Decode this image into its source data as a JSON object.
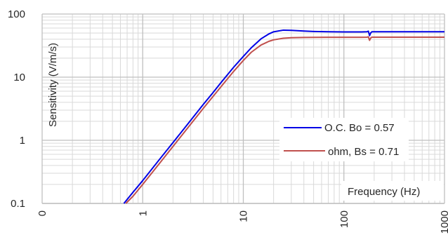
{
  "chart_data": {
    "type": "line",
    "title": "",
    "xlabel": "Frequency (Hz)",
    "ylabel": "Sensitivity (V/m/s)",
    "x_scale": "log",
    "y_scale": "log",
    "xlim": [
      0.1,
      1000
    ],
    "ylim": [
      0.1,
      100
    ],
    "x_tick_labels": [
      "0",
      "1",
      "10",
      "100",
      "1000"
    ],
    "y_tick_labels": [
      "0.1",
      "1",
      "10",
      "100"
    ],
    "grid": true,
    "legend_position": "right",
    "colors": {
      "grid": "#d9d9d9",
      "axis": "#bfbfbf"
    },
    "series": [
      {
        "name": "O.C. Bo = 0.57",
        "color": "#0000e6",
        "x": [
          0.65,
          0.8,
          1,
          1.5,
          2,
          3,
          4,
          5,
          6,
          8,
          10,
          12,
          15,
          18,
          20,
          25,
          30,
          40,
          50,
          70,
          100,
          150,
          170,
          175,
          180,
          185,
          190,
          200,
          300,
          500,
          1000
        ],
        "y": [
          0.1,
          0.15,
          0.23,
          0.52,
          0.92,
          2.07,
          3.7,
          5.7,
          8.2,
          14.3,
          21.3,
          29.2,
          40.5,
          48.5,
          52.3,
          55.6,
          55.2,
          53.8,
          53.0,
          52.4,
          52.0,
          52.0,
          52.5,
          53.5,
          45.5,
          50.5,
          52.5,
          52.5,
          52.5,
          52.5,
          52.5
        ]
      },
      {
        "name": "ohm, Bs = 0.71",
        "color": "#c0504d",
        "x": [
          0.68,
          0.8,
          1,
          1.5,
          2,
          3,
          4,
          5,
          6,
          8,
          10,
          12,
          15,
          18,
          20,
          25,
          30,
          40,
          50,
          70,
          100,
          150,
          170,
          175,
          180,
          185,
          190,
          200,
          300,
          500,
          1000
        ],
        "y": [
          0.1,
          0.13,
          0.2,
          0.45,
          0.8,
          1.8,
          3.2,
          4.95,
          7.05,
          12.3,
          18.4,
          24.8,
          32.3,
          37.0,
          39.0,
          41.4,
          42.2,
          42.6,
          42.7,
          42.8,
          42.8,
          42.8,
          43.0,
          43.6,
          38.3,
          42.0,
          43.0,
          43.0,
          43.0,
          43.0,
          43.0
        ]
      }
    ]
  }
}
